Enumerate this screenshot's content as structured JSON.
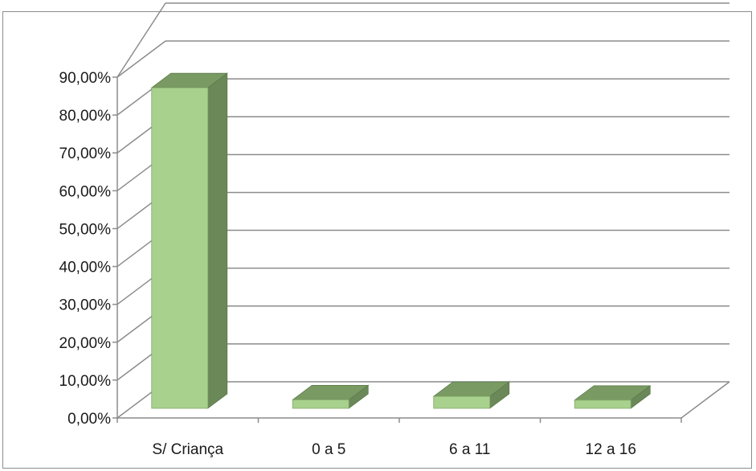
{
  "chart_data": {
    "type": "bar",
    "style": "3d-column",
    "categories": [
      "S/ Criança",
      "0 a 5",
      "6 a 11",
      "12 a 16"
    ],
    "values": [
      0.855,
      0.031,
      0.04,
      0.03
    ],
    "ylim": [
      0,
      0.9
    ],
    "yticks": [
      0,
      0.1,
      0.2,
      0.3,
      0.4,
      0.5,
      0.6,
      0.7,
      0.8,
      0.9
    ],
    "ytick_labels": [
      "0,00%",
      "10,00%",
      "20,00%",
      "30,00%",
      "40,00%",
      "50,00%",
      "60,00%",
      "70,00%",
      "80,00%",
      "90,00%"
    ],
    "grid": true,
    "legend": "none",
    "colors": {
      "bar_front": "#a9d18e",
      "bar_top": "#7a9a63",
      "bar_side": "#6b8859",
      "gridline": "#8c8c8c"
    }
  }
}
